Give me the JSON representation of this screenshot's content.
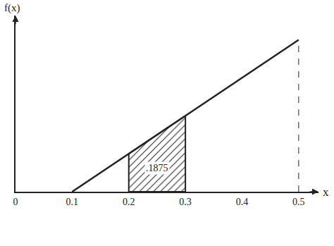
{
  "chart_data": {
    "type": "line",
    "xlabel": "x",
    "ylabel": "f(x)",
    "x": [
      0.1,
      0.5
    ],
    "values": [
      0,
      5
    ],
    "color": "#222222",
    "xlim": [
      0,
      0.535
    ],
    "ylim": [
      0,
      5.8
    ],
    "xticks": [
      0,
      0.1,
      0.2,
      0.3,
      0.4,
      0.5
    ],
    "yticks": [],
    "tick_labels": "x",
    "grid": false,
    "reference_lines": [
      0.5
    ],
    "shaded": {
      "x": [
        0.2,
        0.3
      ],
      "values": [
        1.25,
        2.5
      ],
      "area": 0.1875,
      "area_label": ".1875"
    }
  }
}
